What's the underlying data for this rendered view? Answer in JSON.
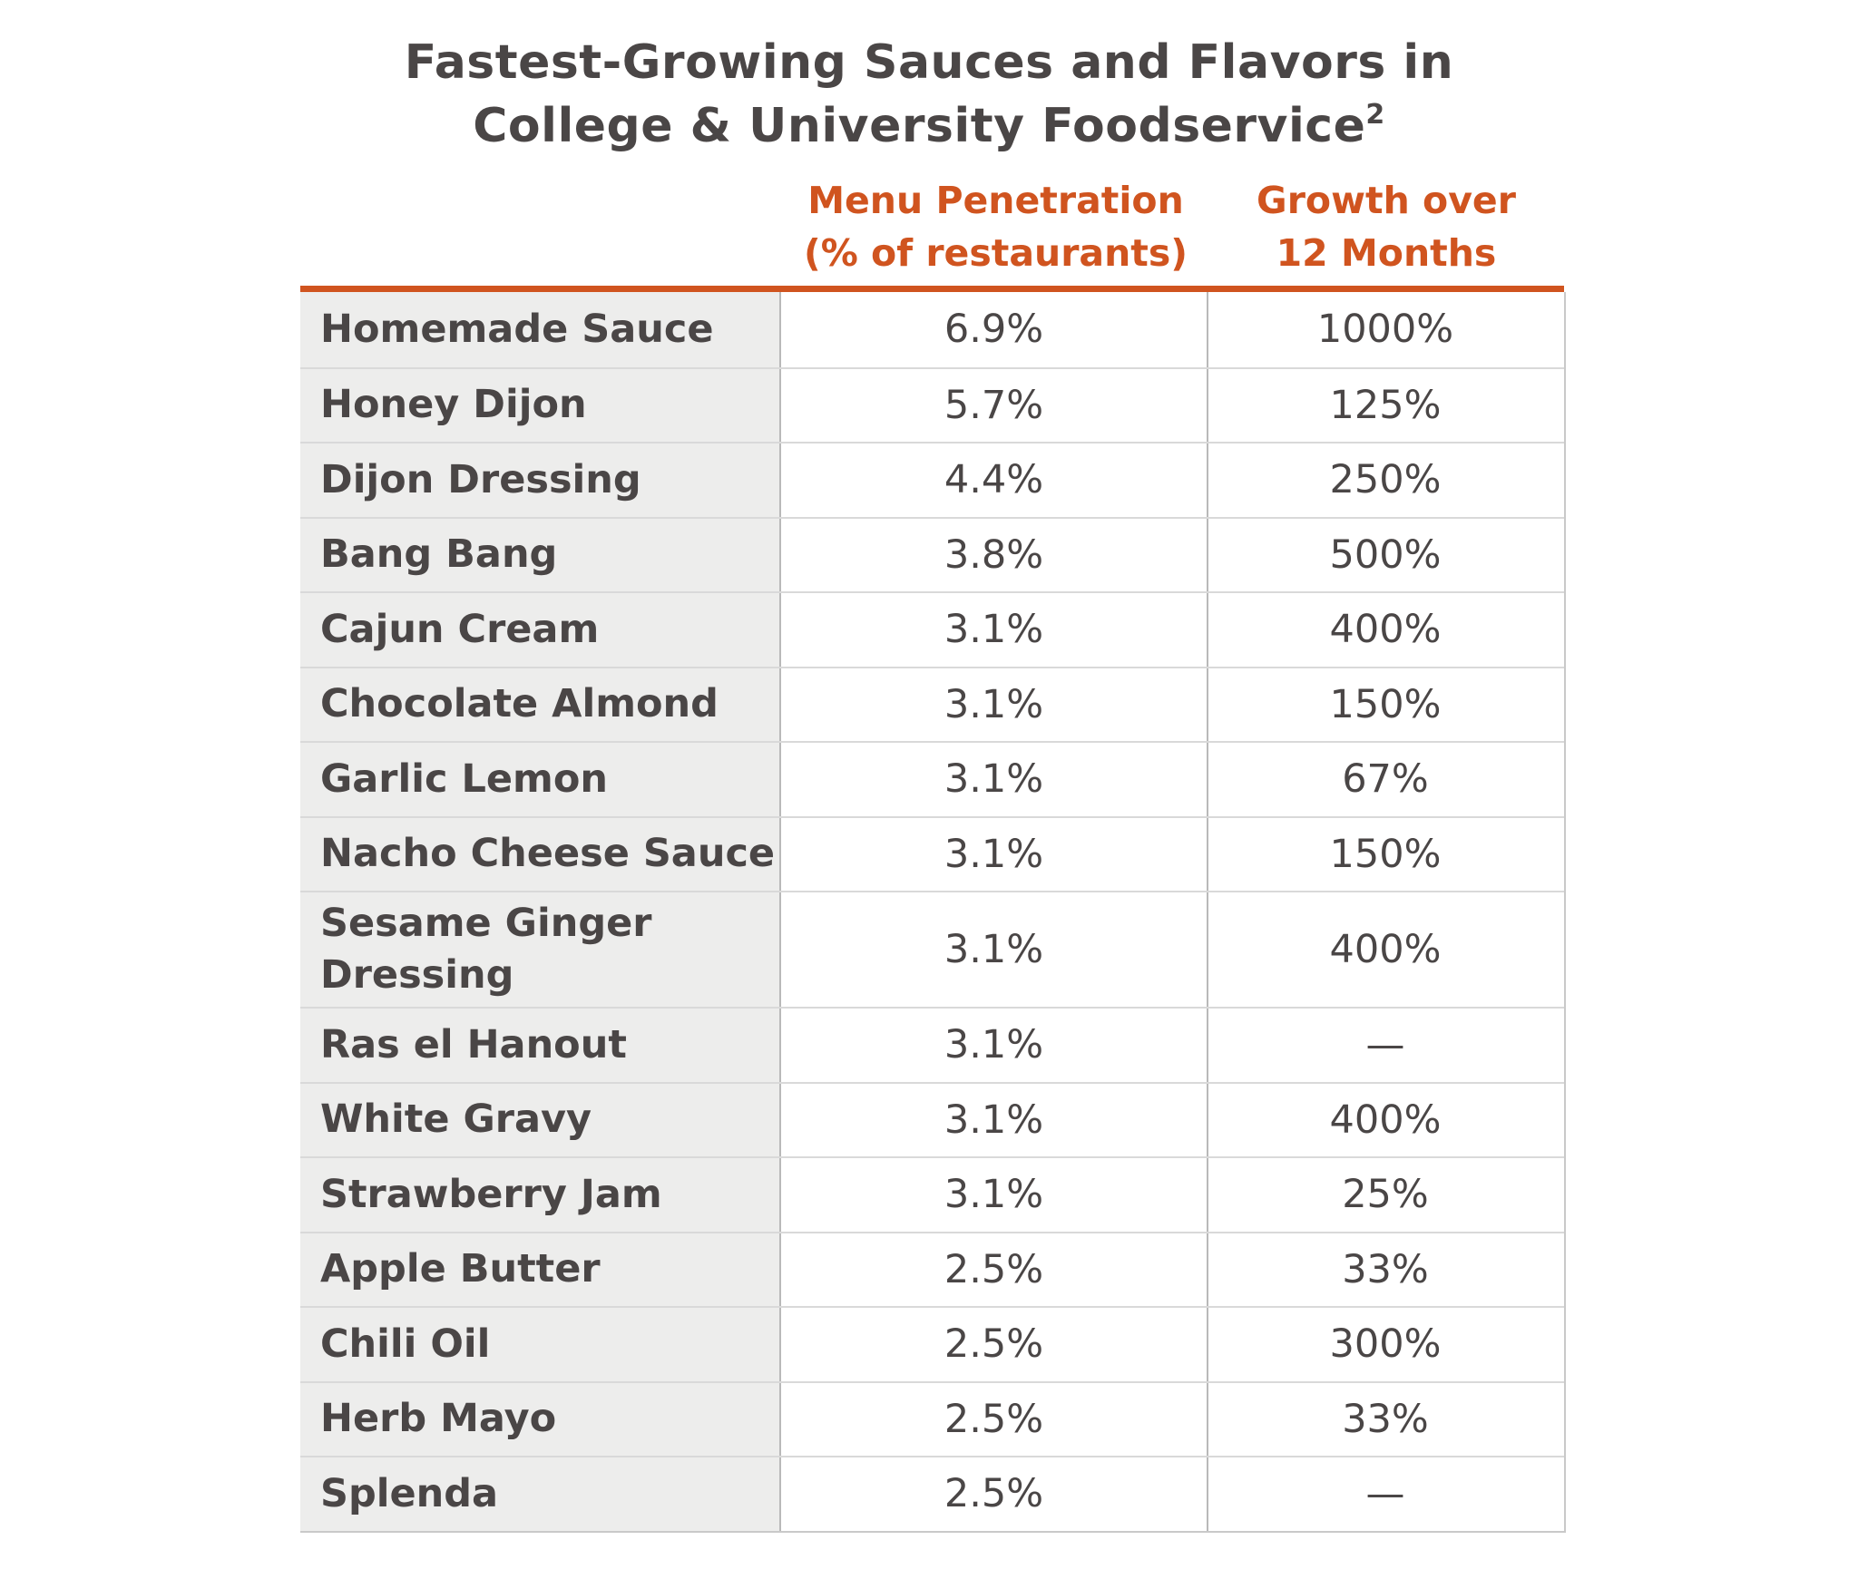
{
  "title": {
    "line1": "Fastest-Growing Sauces and Flavors in",
    "line2": "College & University Foodservice",
    "superscript": "2"
  },
  "columns": {
    "penetration": "Menu Penetration\n(% of restaurants)",
    "growth": "Growth over\n12 Months"
  },
  "chart_data": {
    "type": "table",
    "title": "Fastest-Growing Sauces and Flavors in College & University Foodservice",
    "columns": [
      "",
      "Menu Penetration (% of restaurants)",
      "Growth over 12 Months"
    ],
    "rows": [
      {
        "name": "Homemade Sauce",
        "penetration": "6.9%",
        "growth": "1000%"
      },
      {
        "name": "Honey Dijon",
        "penetration": "5.7%",
        "growth": "125%"
      },
      {
        "name": "Dijon Dressing",
        "penetration": "4.4%",
        "growth": "250%"
      },
      {
        "name": "Bang Bang",
        "penetration": "3.8%",
        "growth": "500%"
      },
      {
        "name": "Cajun Cream",
        "penetration": "3.1%",
        "growth": "400%"
      },
      {
        "name": "Chocolate Almond",
        "penetration": "3.1%",
        "growth": "150%"
      },
      {
        "name": "Garlic Lemon",
        "penetration": "3.1%",
        "growth": "67%"
      },
      {
        "name": "Nacho Cheese Sauce",
        "penetration": "3.1%",
        "growth": "150%"
      },
      {
        "name": "Sesame Ginger Dressing",
        "penetration": "3.1%",
        "growth": "400%"
      },
      {
        "name": "Ras el Hanout",
        "penetration": "3.1%",
        "growth": "—"
      },
      {
        "name": "White Gravy",
        "penetration": "3.1%",
        "growth": "400%"
      },
      {
        "name": "Strawberry Jam",
        "penetration": "3.1%",
        "growth": "25%"
      },
      {
        "name": "Apple Butter",
        "penetration": "2.5%",
        "growth": "33%"
      },
      {
        "name": "Chili Oil",
        "penetration": "2.5%",
        "growth": "300%"
      },
      {
        "name": "Herb Mayo",
        "penetration": "2.5%",
        "growth": "33%"
      },
      {
        "name": "Splenda",
        "penetration": "2.5%",
        "growth": "—"
      }
    ]
  },
  "colors": {
    "accent": "#d0541f",
    "text": "#4a4646",
    "name_column_bg": "#ededec"
  }
}
